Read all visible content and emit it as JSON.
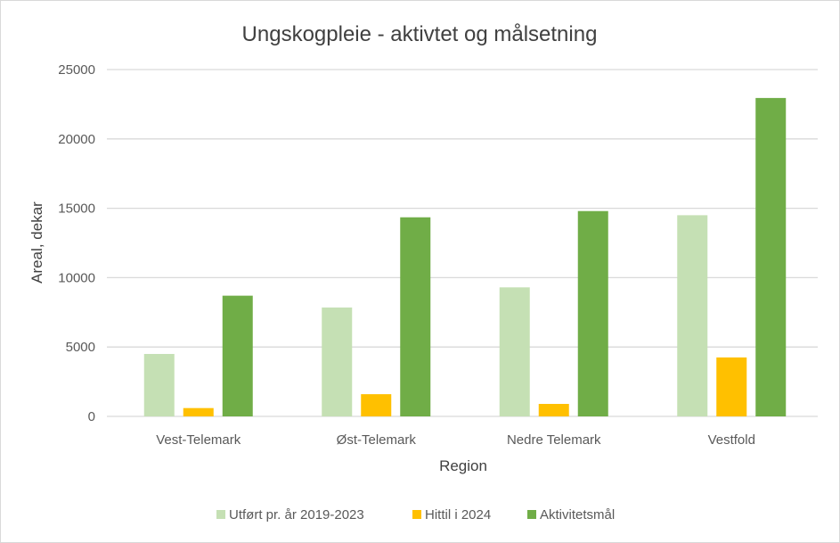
{
  "chart_data": {
    "type": "bar",
    "title": "Ungskogpleie - aktivtet og målsetning",
    "xlabel": "Region",
    "ylabel": "Areal, dekar",
    "ylim": [
      0,
      25000
    ],
    "yticks": [
      0,
      5000,
      10000,
      15000,
      20000,
      25000
    ],
    "grid": true,
    "legend_position": "bottom",
    "categories": [
      "Vest-Telemark",
      "Øst-Telemark",
      "Nedre Telemark",
      "Vestfold"
    ],
    "series": [
      {
        "name": "Utført pr. år 2019-2023",
        "color": "#C5E0B4",
        "values": [
          4500,
          7850,
          9300,
          14500
        ]
      },
      {
        "name": "Hittil i 2024",
        "color": "#FFC000",
        "values": [
          600,
          1600,
          900,
          4250
        ]
      },
      {
        "name": "Aktivitetsmål",
        "color": "#70AD47",
        "values": [
          8700,
          14350,
          14800,
          22950
        ]
      }
    ]
  }
}
